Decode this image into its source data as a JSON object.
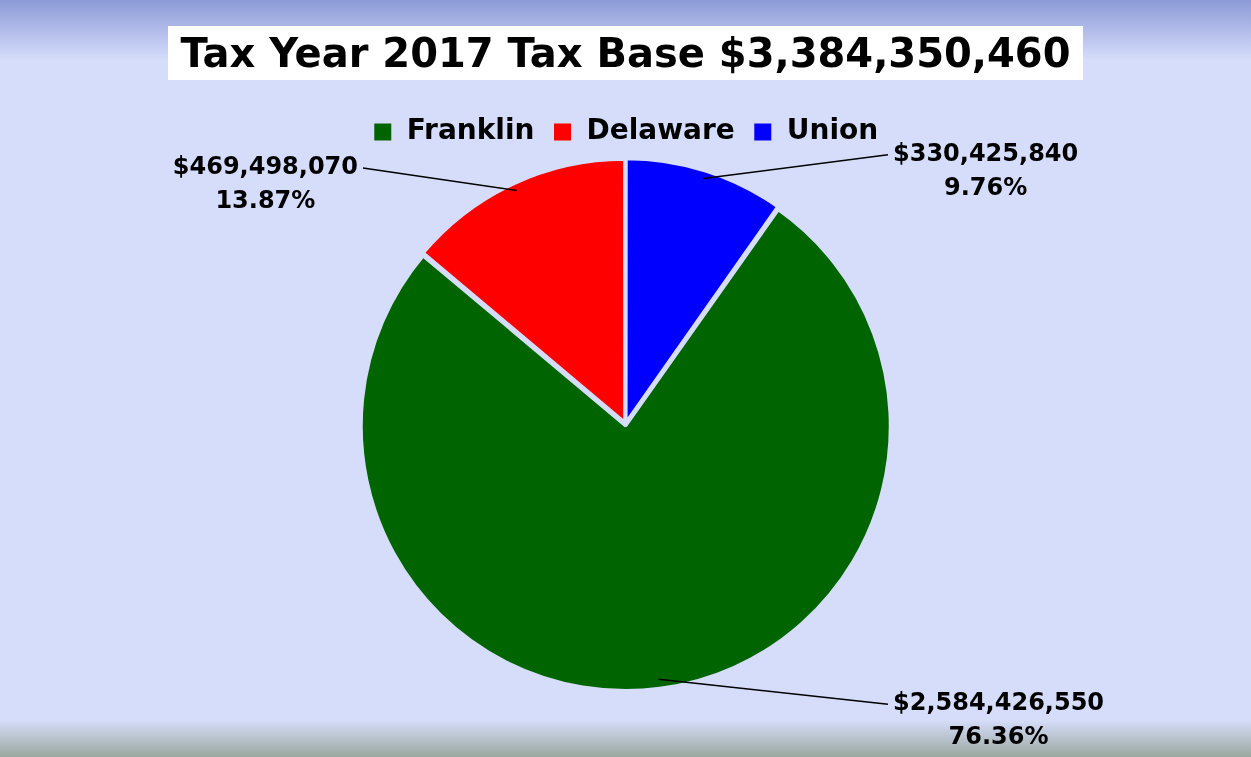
{
  "chart_data": {
    "type": "pie",
    "title": "Tax Year 2017 Tax Base $3,384,350,460",
    "categories": [
      "Franklin",
      "Delaware",
      "Union"
    ],
    "values": [
      2584426550,
      469498070,
      330425840
    ],
    "colors": [
      "#006400",
      "#ff0000",
      "#0000ff"
    ],
    "value_labels": [
      "$2,584,426,550\n76.36%",
      "$469,498,070\n13.87%",
      "$330,425,840\n9.76%"
    ],
    "legend": "top"
  }
}
